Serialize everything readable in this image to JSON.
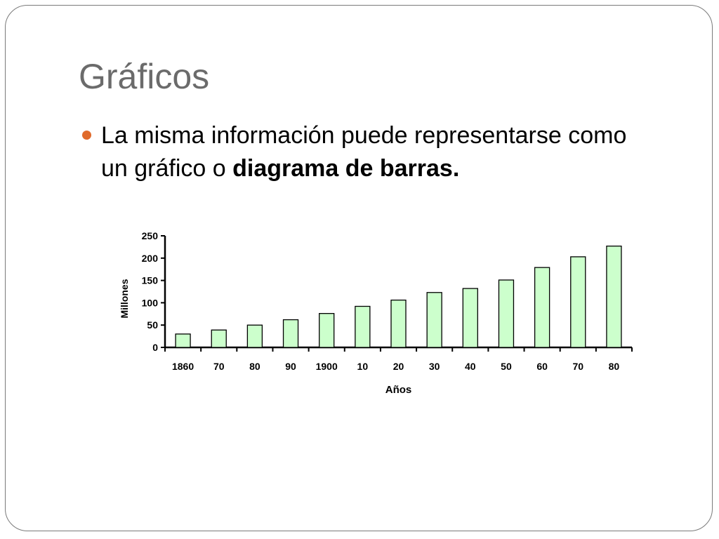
{
  "slide": {
    "title": "Gráficos",
    "bullet": {
      "text_line1": "La misma información puede representarse como",
      "text_line2_plain": "un gráfico o ",
      "text_line2_bold": "diagrama de barras."
    }
  },
  "colors": {
    "title": "#6b6b6b",
    "bullet": "#e06a2b",
    "bar_fill": "#ccffcc",
    "bar_stroke": "#000000"
  },
  "chart_data": {
    "type": "bar",
    "title": "",
    "xlabel": "Años",
    "ylabel": "Millones",
    "categories": [
      "1860",
      "70",
      "80",
      "90",
      "1900",
      "10",
      "20",
      "30",
      "40",
      "50",
      "60",
      "70",
      "80"
    ],
    "values": [
      30,
      39,
      50,
      62,
      76,
      92,
      106,
      123,
      132,
      151,
      179,
      203,
      227
    ],
    "ylim": [
      0,
      250
    ],
    "yticks": [
      0,
      50,
      100,
      150,
      200,
      250
    ],
    "grid": false,
    "legend": "none"
  }
}
